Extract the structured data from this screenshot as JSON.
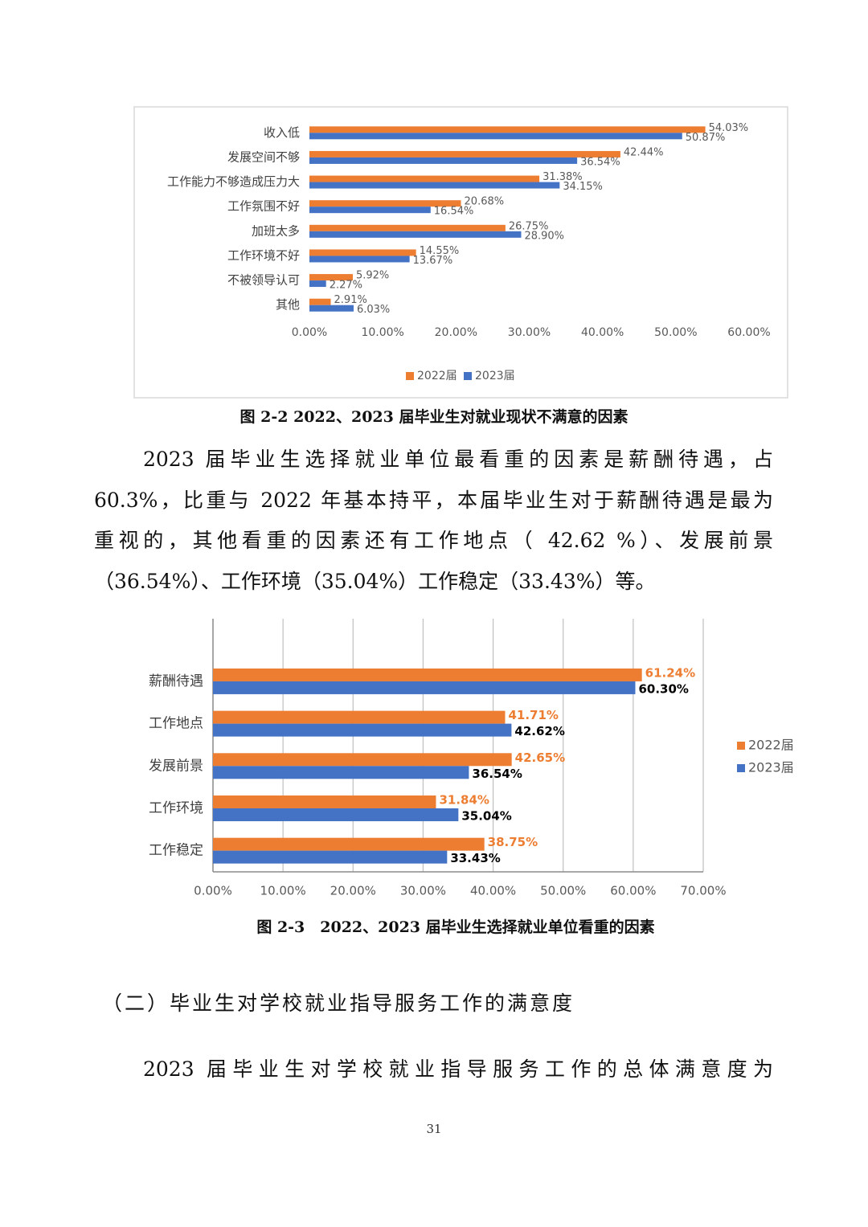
{
  "chart_data": [
    {
      "type": "bar",
      "orientation": "horizontal",
      "title": "图 2-2 2022、2023 届毕业生对就业现状不满意的因素",
      "categories": [
        "收入低",
        "发展空间不够",
        "工作能力不够造成压力大",
        "工作氛围不好",
        "加班太多",
        "工作环境不好",
        "不被领导认可",
        "其他"
      ],
      "series": [
        {
          "name": "2022届",
          "color": "#ed7d31",
          "label_color": "#595959",
          "values": [
            54.03,
            42.44,
            31.38,
            20.68,
            26.75,
            14.55,
            5.92,
            2.91
          ],
          "value_labels": [
            "54.03%",
            "42.44%",
            "31.38%",
            "20.68%",
            "26.75%",
            "14.55%",
            "5.92%",
            "2.91%"
          ]
        },
        {
          "name": "2023届",
          "color": "#4472c4",
          "label_color": "#595959",
          "values": [
            50.87,
            36.54,
            34.15,
            16.54,
            28.9,
            13.67,
            2.27,
            6.03
          ],
          "value_labels": [
            "50.87%",
            "36.54%",
            "34.15%",
            "16.54%",
            "28.90%",
            "13.67%",
            "2.27%",
            "6.03%"
          ]
        }
      ],
      "xlim": [
        0,
        60
      ],
      "xticks": [
        {
          "value": 0,
          "label": "0.00%"
        },
        {
          "value": 10,
          "label": "10.00%"
        },
        {
          "value": 20,
          "label": "20.00%"
        },
        {
          "value": 30,
          "label": "30.00%"
        },
        {
          "value": 40,
          "label": "40.00%"
        },
        {
          "value": 50,
          "label": "50.00%"
        },
        {
          "value": 60,
          "label": "60.00%"
        }
      ],
      "grid": false,
      "legend": "bottom"
    },
    {
      "type": "bar",
      "orientation": "horizontal",
      "title": "图 2-3　2022、2023 届毕业生选择就业单位看重的因素",
      "categories": [
        "薪酬待遇",
        "工作地点",
        "发展前景",
        "工作环境",
        "工作稳定"
      ],
      "series": [
        {
          "name": "2022届",
          "color": "#ed7d31",
          "label_color": "#ed7d31",
          "values": [
            61.24,
            41.71,
            42.65,
            31.84,
            38.75
          ],
          "value_labels": [
            "61.24%",
            "41.71%",
            "42.65%",
            "31.84%",
            "38.75%"
          ]
        },
        {
          "name": "2023届",
          "color": "#4472c4",
          "label_color": "#000000",
          "values": [
            60.3,
            42.62,
            36.54,
            35.04,
            33.43
          ],
          "value_labels": [
            "60.30%",
            "42.62%",
            "36.54%",
            "35.04%",
            "33.43%"
          ]
        }
      ],
      "xlim": [
        0,
        70
      ],
      "xticks": [
        {
          "value": 0,
          "label": "0.00%"
        },
        {
          "value": 10,
          "label": "10.00%"
        },
        {
          "value": 20,
          "label": "20.00%"
        },
        {
          "value": 30,
          "label": "30.00%"
        },
        {
          "value": 40,
          "label": "40.00%"
        },
        {
          "value": 50,
          "label": "50.00%"
        },
        {
          "value": 60,
          "label": "60.00%"
        },
        {
          "value": 70,
          "label": "70.00%"
        }
      ],
      "grid": true,
      "legend": "right"
    }
  ],
  "document": {
    "paragraph_1": [
      "2023 届毕业生选择就业单位最看重的因素是薪酬待遇，占",
      "60.3%，比重与 2022 年基本持平，本届毕业生对于薪酬待遇是最为",
      "重视的，其他看重的因素还有工作地点（ 42.62 %）、发展前景",
      "（36.54%）、工作环境（35.04%）工作稳定（33.43%）等。"
    ],
    "heading": "（二）毕业生对学校就业指导服务工作的满意度",
    "paragraph_2": [
      "2023 届毕业生对学校就业指导服务工作的总体满意度为"
    ],
    "page_number": "31"
  }
}
